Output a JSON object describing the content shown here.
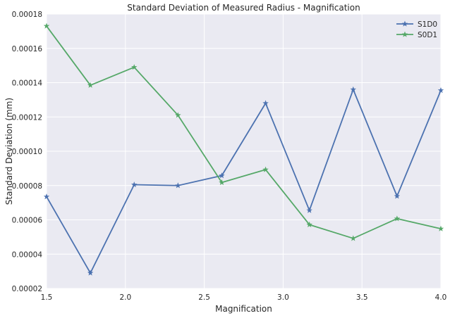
{
  "chart_data": {
    "type": "line",
    "title": "Standard Deviation of Measured Radius - Magnification",
    "xlabel": "Magnification",
    "ylabel": "Standard Deviation (mm)",
    "xlim": [
      1.5,
      4.0
    ],
    "ylim": [
      2e-05,
      0.00018
    ],
    "x_ticks": [
      1.5,
      2.0,
      2.5,
      3.0,
      3.5,
      4.0
    ],
    "x_tick_labels": [
      "1.5",
      "2.0",
      "2.5",
      "3.0",
      "3.5",
      "4.0"
    ],
    "y_ticks": [
      2e-05,
      4e-05,
      6e-05,
      8e-05,
      0.0001,
      0.00012,
      0.00014,
      0.00016,
      0.00018
    ],
    "y_tick_labels": [
      "0.00002",
      "0.00004",
      "0.00006",
      "0.00008",
      "0.00010",
      "0.00012",
      "0.00014",
      "0.00016",
      "0.00018"
    ],
    "grid": true,
    "legend_position": "top-right",
    "x": [
      1.5,
      1.7778,
      2.0556,
      2.3333,
      2.6111,
      2.8889,
      3.1667,
      3.4444,
      3.7222,
      4.0
    ],
    "series": [
      {
        "name": "S1D0",
        "color": "#4c72b0",
        "marker": "star",
        "values": [
          7.35e-05,
          2.9e-05,
          8.05e-05,
          8e-05,
          8.58e-05,
          0.000128,
          6.55e-05,
          0.000136,
          7.38e-05,
          0.0001355
        ]
      },
      {
        "name": "S0D1",
        "color": "#55a868",
        "marker": "star",
        "values": [
          0.000173,
          0.0001385,
          0.000149,
          0.000121,
          8.18e-05,
          8.93e-05,
          5.72e-05,
          4.92e-05,
          6.07e-05,
          5.48e-05
        ]
      }
    ],
    "background_color": "#eaeaf2",
    "grid_color": "#ffffff"
  }
}
